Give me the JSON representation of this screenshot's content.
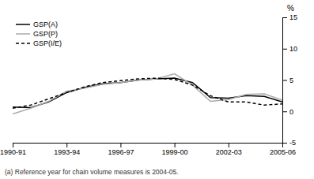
{
  "chart_data": {
    "type": "line",
    "categories": [
      "1990-91",
      null,
      null,
      "1993-94",
      null,
      null,
      "1996-97",
      null,
      null,
      "1999-00",
      null,
      null,
      "2002-03",
      null,
      null,
      "2005-06"
    ],
    "series": [
      {
        "name": "GSP(A)",
        "color": "#000000",
        "line_style": "solid",
        "values": [
          0.7,
          0.6,
          1.5,
          3.0,
          3.8,
          4.4,
          4.6,
          5.0,
          5.2,
          5.3,
          4.6,
          2.2,
          2.1,
          2.5,
          2.4,
          1.5
        ]
      },
      {
        "name": "GSP(P)",
        "color": "#aaaaaa",
        "line_style": "solid",
        "values": [
          -0.4,
          0.5,
          1.6,
          3.2,
          3.7,
          4.3,
          4.6,
          5.0,
          5.2,
          6.0,
          4.2,
          1.6,
          1.9,
          2.7,
          2.8,
          1.8
        ]
      },
      {
        "name": "GSP(I/E)",
        "color": "#000000",
        "line_style": "dashed",
        "values": [
          0.5,
          1.0,
          2.0,
          3.0,
          3.9,
          4.6,
          4.9,
          5.2,
          5.3,
          5.1,
          4.2,
          2.5,
          1.5,
          1.5,
          1.0,
          1.2
        ]
      }
    ],
    "y_label": "%",
    "annotations": [
      "(a) Reference year for chain volume measures is 2004-05."
    ],
    "ylim": [
      -5,
      15
    ],
    "yticks": [
      -5,
      0,
      5,
      10,
      15
    ],
    "grid": false,
    "legend": "upper left"
  }
}
